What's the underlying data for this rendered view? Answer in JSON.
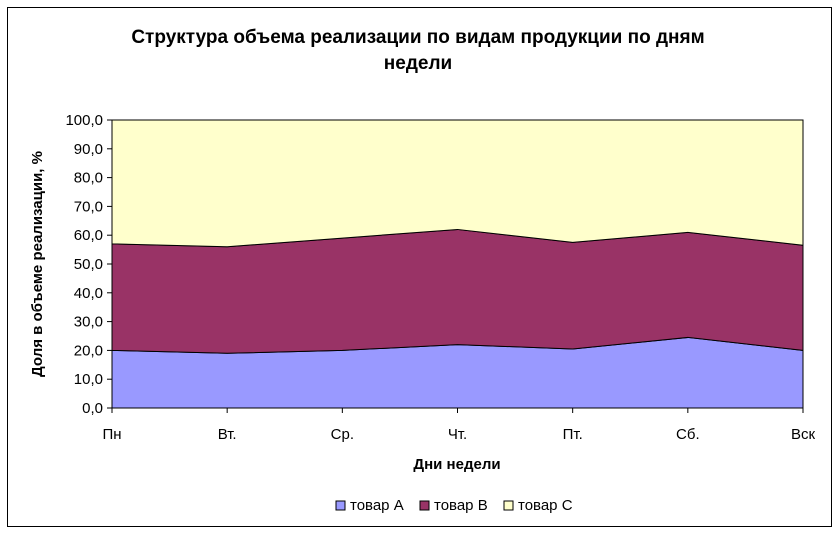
{
  "chart_data": {
    "type": "area",
    "stacked": true,
    "title_lines": [
      "Структура объема реализации по видам продукции по дням",
      "недели"
    ],
    "xlabel": "Дни недели",
    "ylabel": "Доля в объеме реализации, %",
    "categories": [
      "Пн",
      "Вт.",
      "Ср.",
      "Чт.",
      "Пт.",
      "Сб.",
      "Вск"
    ],
    "ylim": [
      0,
      100
    ],
    "yticks": [
      0,
      10,
      20,
      30,
      40,
      50,
      60,
      70,
      80,
      90,
      100
    ],
    "ytick_labels": [
      "0,0",
      "10,0",
      "20,0",
      "30,0",
      "40,0",
      "50,0",
      "60,0",
      "70,0",
      "80,0",
      "90,0",
      "100,0"
    ],
    "grid": false,
    "legend_position": "bottom",
    "series": [
      {
        "name": "товар A",
        "color": "#9999ff",
        "values": [
          20.0,
          19.0,
          20.0,
          22.0,
          20.5,
          24.5,
          20.0
        ]
      },
      {
        "name": "товар B",
        "color": "#993366",
        "values": [
          37.0,
          37.0,
          39.0,
          40.0,
          37.0,
          36.5,
          36.5
        ]
      },
      {
        "name": "товар C",
        "color": "#ffffcc",
        "values": [
          43.0,
          44.0,
          41.0,
          38.0,
          42.5,
          39.0,
          43.5
        ]
      }
    ]
  }
}
